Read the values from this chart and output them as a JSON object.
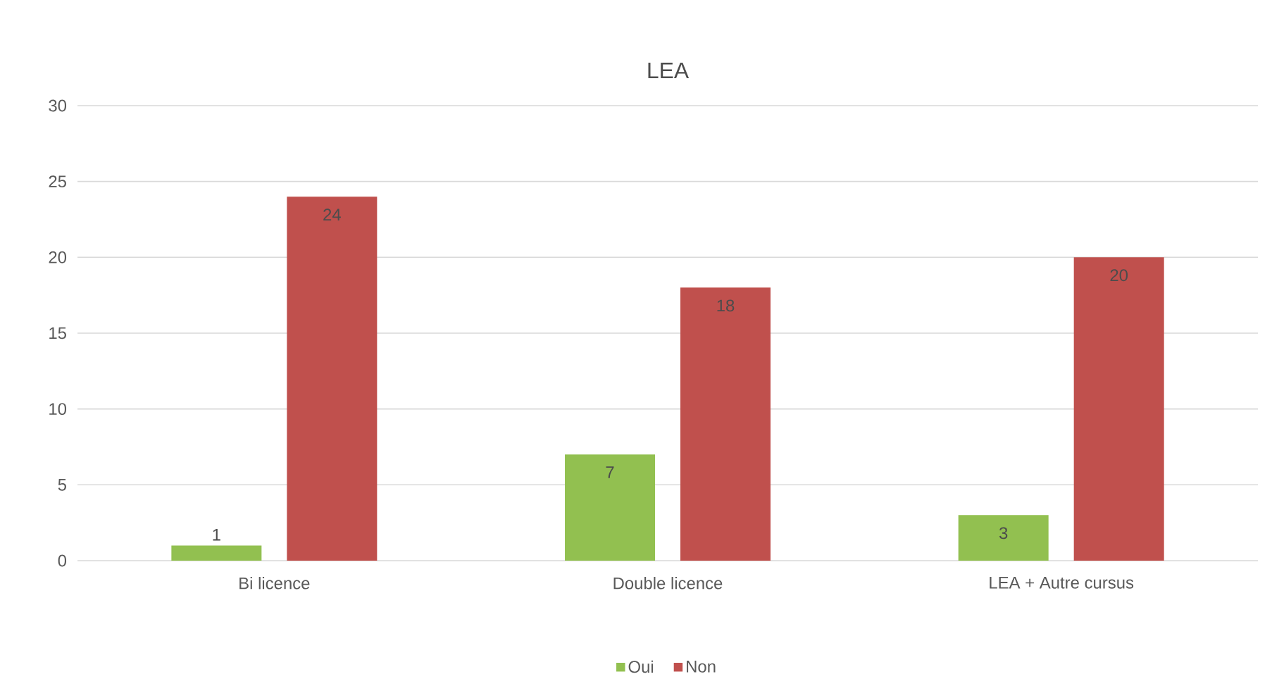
{
  "chart_data": {
    "type": "bar",
    "title": "LEA",
    "categories": [
      "Bi licence",
      "Double licence",
      "LEA + Autre cursus"
    ],
    "series": [
      {
        "name": "Oui",
        "color": "#92c050",
        "values": [
          1,
          7,
          3
        ]
      },
      {
        "name": "Non",
        "color": "#c0504d",
        "values": [
          24,
          18,
          20
        ]
      }
    ],
    "ylim": [
      0,
      30
    ],
    "yticks": [
      0,
      5,
      10,
      15,
      20,
      25,
      30
    ],
    "grid": "y",
    "legend": "bottom",
    "data_labels": true
  }
}
